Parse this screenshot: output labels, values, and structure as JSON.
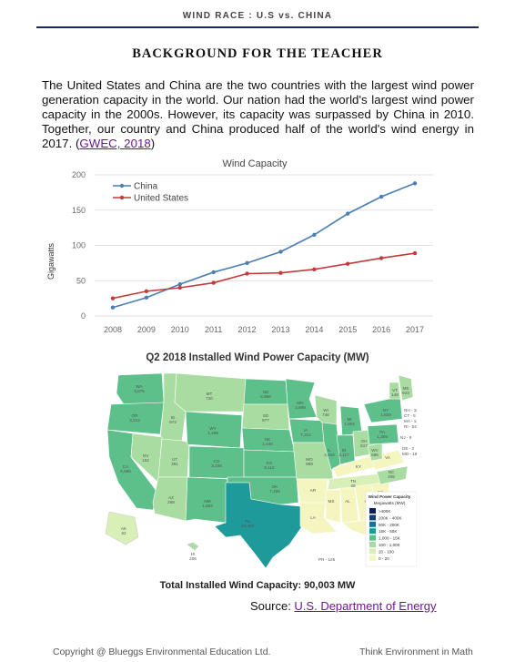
{
  "header": {
    "text": "WIND RACE :   U.S vs. CHINA"
  },
  "title": "BACKGROUND FOR THE TEACHER",
  "paragraph": {
    "text": "The United States and China are the two countries with the largest wind power generation capacity in the world.  Our nation had the world's largest wind power capacity in the 2000s. However, its capacity was surpassed by China in 2010. Together, our country and China produced half of the world's wind energy in 2017.  ",
    "link_open": "(",
    "link_text": "GWEC, 2018",
    "link_close": ")"
  },
  "chart_data": {
    "type": "line",
    "title": "Wind Capacity",
    "xlabel": "",
    "ylabel": "Gigawatts",
    "categories": [
      "2008",
      "2009",
      "2010",
      "2011",
      "2012",
      "2013",
      "2014",
      "2015",
      "2016",
      "2017"
    ],
    "yticks": [
      0,
      50,
      100,
      150,
      200
    ],
    "ylim": [
      0,
      200
    ],
    "grid": true,
    "legend_position": "top-left",
    "series": [
      {
        "name": "China",
        "color": "#4a7eb5",
        "values": [
          12,
          26,
          45,
          62,
          75,
          91,
          115,
          145,
          169,
          188
        ]
      },
      {
        "name": "United States",
        "color": "#c23b3b",
        "values": [
          25,
          35,
          40,
          47,
          60,
          61,
          66,
          74,
          82,
          89
        ]
      }
    ]
  },
  "map": {
    "title": "Q2 2018 Installed Wind Power Capacity (MW)",
    "states": [
      {
        "abbr": "WA",
        "value": "3,075"
      },
      {
        "abbr": "OR",
        "value": "3,213"
      },
      {
        "abbr": "CA",
        "value": "5,686"
      },
      {
        "abbr": "ID",
        "value": "973"
      },
      {
        "abbr": "NV",
        "value": "152"
      },
      {
        "abbr": "UT",
        "value": "391"
      },
      {
        "abbr": "AZ",
        "value": "268"
      },
      {
        "abbr": "MT",
        "value": "720"
      },
      {
        "abbr": "WY",
        "value": "1,489"
      },
      {
        "abbr": "CO",
        "value": "3,106"
      },
      {
        "abbr": "NM",
        "value": "1,682"
      },
      {
        "abbr": "ND",
        "value": "2,996"
      },
      {
        "abbr": "SD",
        "value": "977"
      },
      {
        "abbr": "NE",
        "value": "1,445"
      },
      {
        "abbr": "KS",
        "value": "5,110"
      },
      {
        "abbr": "OK",
        "value": "7,495"
      },
      {
        "abbr": "TX",
        "value": "23,262"
      },
      {
        "abbr": "MN",
        "value": "3,699"
      },
      {
        "abbr": "IA",
        "value": "7,312"
      },
      {
        "abbr": "MO",
        "value": "959"
      },
      {
        "abbr": "AR",
        "value": ""
      },
      {
        "abbr": "LA",
        "value": ""
      },
      {
        "abbr": "WI",
        "value": "746"
      },
      {
        "abbr": "IL",
        "value": "4,464"
      },
      {
        "abbr": "MI",
        "value": "1,904"
      },
      {
        "abbr": "IN",
        "value": "2,117"
      },
      {
        "abbr": "OH",
        "value": "617"
      },
      {
        "abbr": "KY",
        "value": ""
      },
      {
        "abbr": "TN",
        "value": "29"
      },
      {
        "abbr": "MS",
        "value": ""
      },
      {
        "abbr": "AL",
        "value": ""
      },
      {
        "abbr": "GA",
        "value": ""
      },
      {
        "abbr": "FL",
        "value": ""
      },
      {
        "abbr": "SC",
        "value": ""
      },
      {
        "abbr": "NC",
        "value": "208"
      },
      {
        "abbr": "VA",
        "value": ""
      },
      {
        "abbr": "WV",
        "value": "686"
      },
      {
        "abbr": "PA",
        "value": "1,369"
      },
      {
        "abbr": "NY",
        "value": "1,829"
      },
      {
        "abbr": "VT",
        "value": "149"
      },
      {
        "abbr": "ME",
        "value": "923"
      },
      {
        "abbr": "AK",
        "value": "62"
      },
      {
        "abbr": "HI",
        "value": "206"
      }
    ],
    "callouts": [
      "NH - 185",
      "CT - 5",
      "MA - 113",
      "RI - 54",
      "NJ - 9",
      "DE - 2",
      "MD - 191",
      "PR - 125"
    ],
    "legend": {
      "title": "Wind Power Capacity",
      "subtitle": "Megawatts (MW)",
      "items": [
        {
          "label": ">400K",
          "color": "#0b1f5c"
        },
        {
          "label": "200K - 400K",
          "color": "#10407a"
        },
        {
          "label": "50K - 200K",
          "color": "#1a6f9a"
        },
        {
          "label": "15K - 50K",
          "color": "#1f9a9a"
        },
        {
          "label": "1,000 - 15K",
          "color": "#5dbf8a"
        },
        {
          "label": "100 - 1,000",
          "color": "#a8dca0"
        },
        {
          "label": "20 - 100",
          "color": "#d8f0b8"
        },
        {
          "label": "0 - 20",
          "color": "#f5f5c0"
        }
      ]
    },
    "total": "Total Installed Wind Capacity: 90,003 MW"
  },
  "source": {
    "label": "Source:  ",
    "link": "U.S. Department of Energy"
  },
  "footer": {
    "left": "Copyright @ Blueggs Environmental Education Ltd.",
    "right": "Think Environment in Math"
  }
}
